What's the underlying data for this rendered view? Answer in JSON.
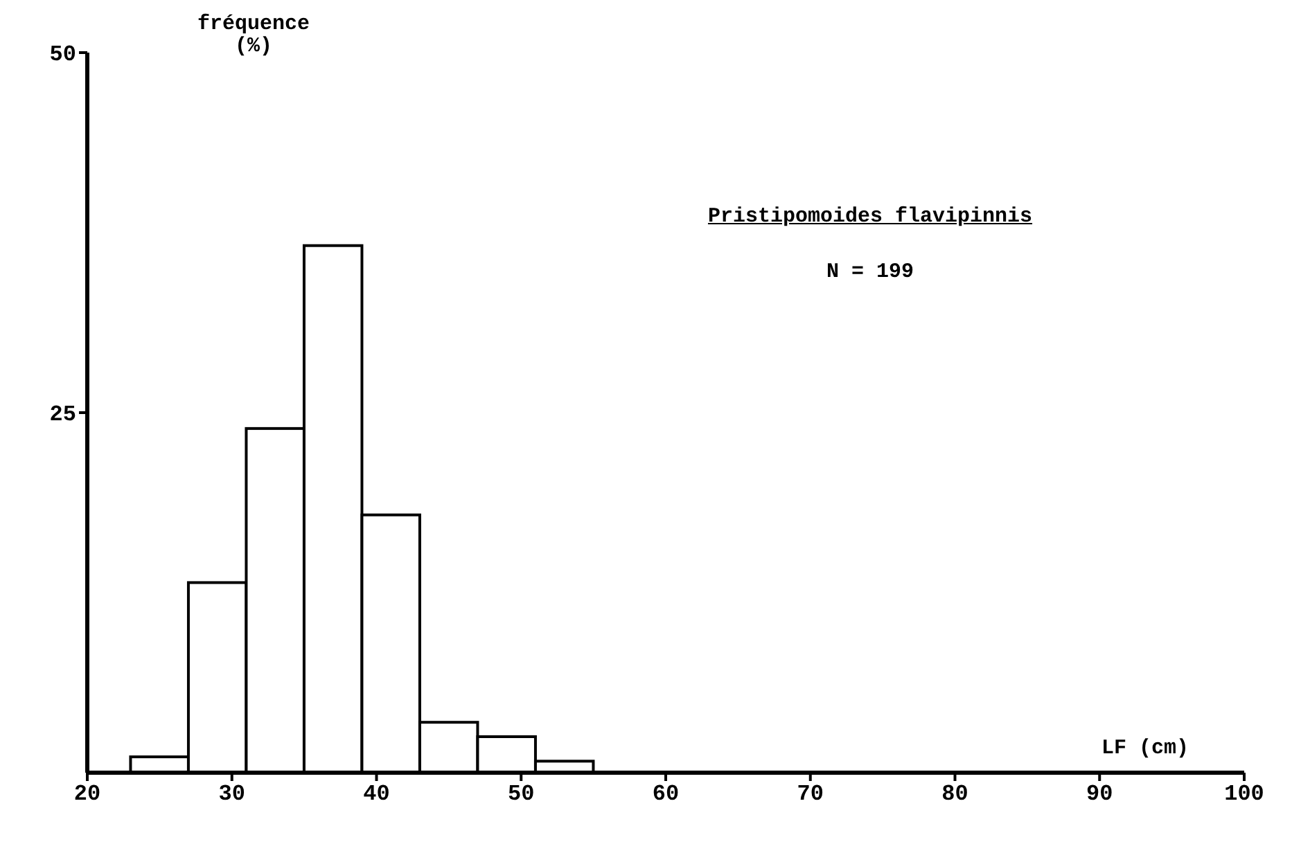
{
  "chart_data": {
    "type": "histogram",
    "xlabel": "LF (cm)",
    "ylabel": "fréquence\n(%)",
    "annotations": [
      "Pristipomoides flavipinnis",
      "N = 199"
    ],
    "bins": [
      23,
      27,
      31,
      35,
      39,
      43,
      47,
      51,
      55
    ],
    "values": [
      1.1,
      13.2,
      23.9,
      36.6,
      17.9,
      3.5,
      2.5,
      0.8
    ],
    "color": "#ffffff",
    "xlim": [
      20,
      100
    ],
    "xticks": [
      20,
      30,
      40,
      50,
      60,
      70,
      80,
      90,
      100
    ],
    "ylim": [
      0,
      50
    ],
    "yticks": [
      25,
      50
    ],
    "grid": false
  }
}
